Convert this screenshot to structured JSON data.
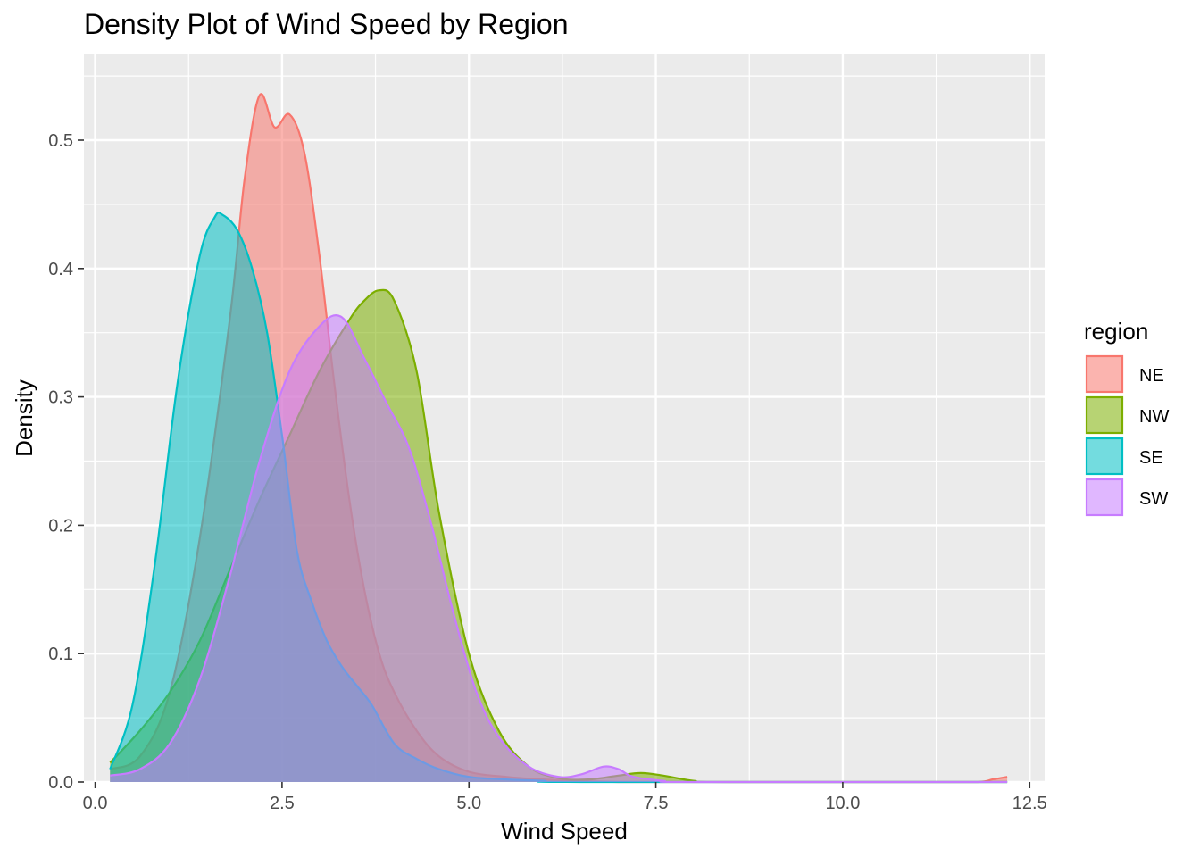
{
  "chart_data": {
    "type": "area",
    "title": "Density Plot of Wind Speed by Region",
    "xlabel": "Wind Speed",
    "ylabel": "Density",
    "xlim": [
      -0.15,
      12.7
    ],
    "ylim": [
      0,
      0.55
    ],
    "xticks": [
      0.0,
      2.5,
      5.0,
      7.5,
      10.0,
      12.5
    ],
    "xtick_labels": [
      "0.0",
      "2.5",
      "5.0",
      "7.5",
      "10.0",
      "12.5"
    ],
    "yticks": [
      0.0,
      0.1,
      0.2,
      0.3,
      0.4,
      0.5
    ],
    "ytick_labels": [
      "0.0",
      "0.1",
      "0.2",
      "0.3",
      "0.4",
      "0.5"
    ],
    "grid": true,
    "legend": {
      "title": "region",
      "position": "right"
    },
    "series": [
      {
        "name": "NE",
        "color": "#F8766D",
        "x": [
          0.2,
          0.6,
          1.0,
          1.4,
          1.8,
          2.0,
          2.2,
          2.4,
          2.6,
          2.8,
          3.0,
          3.2,
          3.4,
          3.6,
          3.8,
          4.0,
          4.3,
          4.6,
          5.0,
          5.5,
          6.0,
          7.0,
          8.0,
          9.0,
          10.0,
          11.0,
          11.8,
          12.0,
          12.2
        ],
        "y": [
          0.01,
          0.02,
          0.07,
          0.19,
          0.36,
          0.47,
          0.535,
          0.51,
          0.52,
          0.49,
          0.41,
          0.31,
          0.22,
          0.15,
          0.1,
          0.07,
          0.04,
          0.02,
          0.008,
          0.004,
          0.002,
          0.0,
          0.0,
          0.0,
          0.0,
          0.0,
          0.0,
          0.002,
          0.004
        ]
      },
      {
        "name": "NW",
        "color": "#7CAE00",
        "x": [
          0.2,
          0.6,
          1.0,
          1.4,
          1.8,
          2.2,
          2.6,
          3.0,
          3.4,
          3.6,
          3.8,
          4.0,
          4.3,
          4.6,
          5.0,
          5.4,
          5.8,
          6.2,
          6.6,
          7.0,
          7.3,
          7.6,
          8.0,
          8.5,
          12.2
        ],
        "y": [
          0.015,
          0.04,
          0.07,
          0.11,
          0.165,
          0.22,
          0.27,
          0.32,
          0.36,
          0.375,
          0.383,
          0.375,
          0.32,
          0.21,
          0.1,
          0.04,
          0.012,
          0.003,
          0.002,
          0.005,
          0.007,
          0.005,
          0.001,
          0.0,
          0.0
        ]
      },
      {
        "name": "SE",
        "color": "#00BFC4",
        "x": [
          0.2,
          0.5,
          0.8,
          1.1,
          1.4,
          1.6,
          1.7,
          1.9,
          2.1,
          2.3,
          2.5,
          2.7,
          2.9,
          3.1,
          3.3,
          3.5,
          3.7,
          4.0,
          4.3,
          4.6,
          5.0,
          5.5,
          6.0,
          6.5,
          12.2
        ],
        "y": [
          0.01,
          0.06,
          0.17,
          0.31,
          0.41,
          0.44,
          0.442,
          0.43,
          0.4,
          0.35,
          0.27,
          0.18,
          0.14,
          0.11,
          0.09,
          0.075,
          0.06,
          0.03,
          0.018,
          0.01,
          0.004,
          0.002,
          0.001,
          0.0,
          0.0
        ]
      },
      {
        "name": "SW",
        "color": "#C77CFF",
        "x": [
          0.2,
          0.6,
          1.0,
          1.4,
          1.8,
          2.2,
          2.6,
          3.0,
          3.3,
          3.6,
          3.9,
          4.2,
          4.5,
          4.8,
          5.1,
          5.4,
          5.8,
          6.2,
          6.5,
          6.8,
          7.0,
          7.2,
          7.6,
          8.0,
          12.2
        ],
        "y": [
          0.005,
          0.01,
          0.03,
          0.08,
          0.16,
          0.25,
          0.32,
          0.355,
          0.362,
          0.33,
          0.295,
          0.26,
          0.2,
          0.13,
          0.07,
          0.035,
          0.012,
          0.004,
          0.006,
          0.012,
          0.01,
          0.004,
          0.001,
          0.0,
          0.0
        ]
      }
    ]
  }
}
